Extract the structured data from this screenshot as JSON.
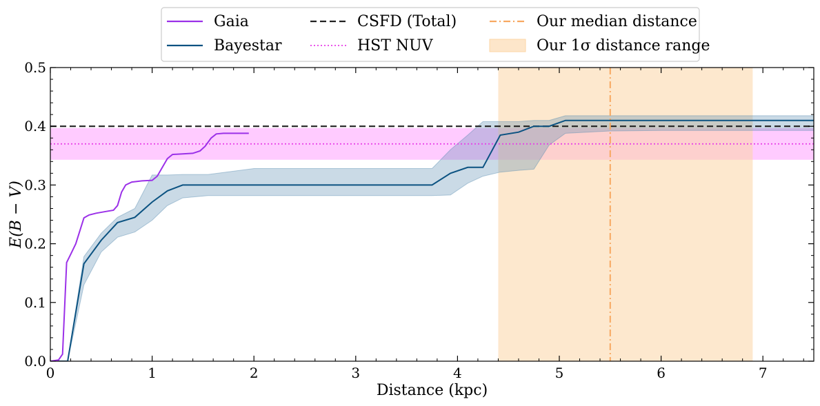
{
  "chart_data": {
    "type": "line",
    "xlabel": "Distance (kpc)",
    "ylabel": "E(B − V)",
    "xlim": [
      0,
      7.5
    ],
    "ylim": [
      0,
      0.5
    ],
    "xticks": [
      0,
      1,
      2,
      3,
      4,
      5,
      6,
      7
    ],
    "yticks": [
      0.0,
      0.1,
      0.2,
      0.3,
      0.4,
      0.5
    ],
    "xtick_labels": [
      "0",
      "1",
      "2",
      "3",
      "4",
      "5",
      "6",
      "7"
    ],
    "ytick_labels": [
      "0.0",
      "0.1",
      "0.2",
      "0.3",
      "0.4",
      "0.5"
    ],
    "legend_position": "top-center, outside plot",
    "series": [
      {
        "name": "Gaia",
        "color": "#9b30e8",
        "style": "solid",
        "x": [
          0,
          0.08,
          0.12,
          0.16,
          0.2,
          0.25,
          0.33,
          0.38,
          0.45,
          0.55,
          0.62,
          0.66,
          0.7,
          0.74,
          0.8,
          0.9,
          1.0,
          1.05,
          1.1,
          1.15,
          1.2,
          1.3,
          1.4,
          1.47,
          1.52,
          1.58,
          1.63,
          1.7,
          1.8,
          1.95
        ],
        "y": [
          0.0,
          0.002,
          0.012,
          0.168,
          0.182,
          0.2,
          0.244,
          0.249,
          0.252,
          0.255,
          0.257,
          0.265,
          0.288,
          0.3,
          0.305,
          0.307,
          0.308,
          0.315,
          0.33,
          0.345,
          0.352,
          0.353,
          0.354,
          0.358,
          0.366,
          0.38,
          0.387,
          0.388,
          0.388,
          0.388
        ]
      },
      {
        "name": "Bayestar",
        "color": "#0b5281",
        "style": "solid",
        "x": [
          0,
          0.17,
          0.33,
          0.5,
          0.66,
          0.83,
          1.0,
          1.15,
          1.3,
          1.55,
          2.0,
          2.5,
          3.0,
          3.5,
          3.75,
          3.93,
          4.1,
          4.25,
          4.42,
          4.6,
          4.75,
          4.9,
          5.06,
          5.5,
          6.0,
          6.5,
          7.0,
          7.5
        ],
        "y": [
          0.0,
          0.0,
          0.166,
          0.206,
          0.236,
          0.245,
          0.271,
          0.29,
          0.3,
          0.3,
          0.3,
          0.3,
          0.3,
          0.3,
          0.3,
          0.32,
          0.33,
          0.33,
          0.385,
          0.39,
          0.4,
          0.4,
          0.41,
          0.41,
          0.41,
          0.41,
          0.41,
          0.41
        ],
        "band_upper": [
          0.0,
          0.0,
          0.178,
          0.218,
          0.245,
          0.26,
          0.317,
          0.317,
          0.318,
          0.318,
          0.328,
          0.328,
          0.328,
          0.328,
          0.328,
          0.36,
          0.385,
          0.408,
          0.408,
          0.408,
          0.41,
          0.41,
          0.418,
          0.418,
          0.418,
          0.418,
          0.418,
          0.418
        ],
        "band_lower": [
          0.0,
          0.0,
          0.13,
          0.186,
          0.211,
          0.22,
          0.24,
          0.265,
          0.278,
          0.282,
          0.282,
          0.282,
          0.282,
          0.282,
          0.282,
          0.283,
          0.303,
          0.315,
          0.322,
          0.325,
          0.327,
          0.368,
          0.388,
          0.392,
          0.393,
          0.393,
          0.393,
          0.393
        ]
      },
      {
        "name": "CSFD (Total)",
        "color": "#222222",
        "style": "dashed",
        "y_constant": 0.4
      },
      {
        "name": "HST NUV",
        "color": "#e83be8",
        "style": "dotted",
        "y_constant": 0.37,
        "band": [
          0.343,
          0.397
        ]
      },
      {
        "name": "Our median distance",
        "color": "#f7a861",
        "style": "dashdot",
        "x_constant": 5.5
      },
      {
        "name": "Our 1σ distance range",
        "color": "#fde3c4",
        "style": "band",
        "x_range": [
          4.4,
          6.9
        ]
      }
    ]
  }
}
